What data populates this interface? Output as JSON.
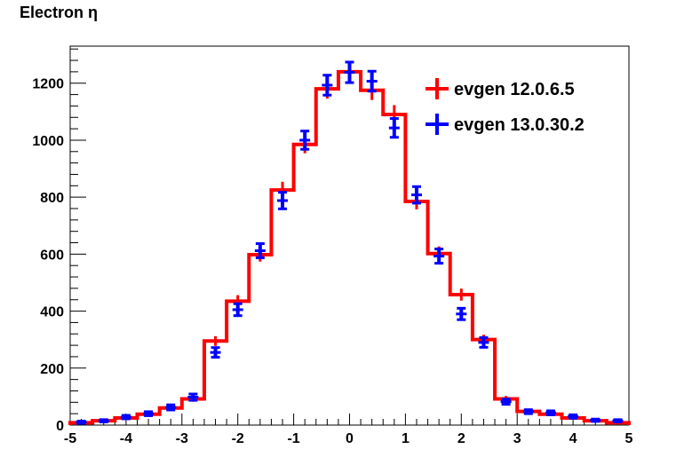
{
  "chart_data": {
    "type": "histogram",
    "title": "Electron η",
    "xlim": [
      -5,
      5
    ],
    "ylim": [
      0,
      1330
    ],
    "x_bin_edges": [
      -5.0,
      -4.6,
      -4.2,
      -3.8,
      -3.4,
      -3.0,
      -2.6,
      -2.2,
      -1.8,
      -1.4,
      -1.0,
      -0.6,
      -0.2,
      0.2,
      0.6,
      1.0,
      1.4,
      1.8,
      2.2,
      2.6,
      3.0,
      3.4,
      3.8,
      4.2,
      4.6,
      5.0
    ],
    "x_ticks": [
      -5,
      -4,
      -3,
      -2,
      -1,
      0,
      1,
      2,
      3,
      4,
      5
    ],
    "x_tick_labels": [
      "-5",
      "-4",
      "-3",
      "-2",
      "-1",
      "0",
      "1",
      "2",
      "3",
      "4",
      "5"
    ],
    "y_ticks": [
      0,
      200,
      400,
      600,
      800,
      1000,
      1200
    ],
    "y_tick_labels": [
      "0",
      "200",
      "400",
      "600",
      "800",
      "1000",
      "1200"
    ],
    "series": [
      {
        "name": "evgen 12.0.6.5",
        "color": "#ff0000",
        "style": "histogram-step",
        "values": [
          8,
          15,
          25,
          38,
          60,
          92,
          295,
          435,
          598,
          825,
          985,
          1180,
          1240,
          1175,
          1090,
          785,
          602,
          458,
          300,
          92,
          48,
          38,
          25,
          15,
          8
        ],
        "errors": [
          3,
          4,
          5,
          6,
          8,
          10,
          17,
          21,
          24,
          29,
          31,
          34,
          35,
          34,
          33,
          28,
          25,
          21,
          17,
          10,
          7,
          6,
          5,
          4,
          3
        ]
      },
      {
        "name": "evgen 13.0.30.2",
        "color": "#0000ff",
        "style": "points-with-errors",
        "values": [
          10,
          15,
          28,
          40,
          62,
          98,
          255,
          405,
          612,
          788,
          1000,
          1193,
          1238,
          1207,
          1043,
          808,
          593,
          390,
          290,
          82,
          47,
          43,
          30,
          17,
          15
        ],
        "errors": [
          4,
          4,
          6,
          7,
          9,
          11,
          17,
          21,
          25,
          29,
          32,
          35,
          36,
          35,
          33,
          29,
          25,
          20,
          17,
          9,
          7,
          7,
          6,
          4,
          4
        ]
      }
    ],
    "legend": {
      "position": "top-right",
      "entries": [
        "evgen 12.0.6.5",
        "evgen 13.0.30.2"
      ]
    }
  }
}
